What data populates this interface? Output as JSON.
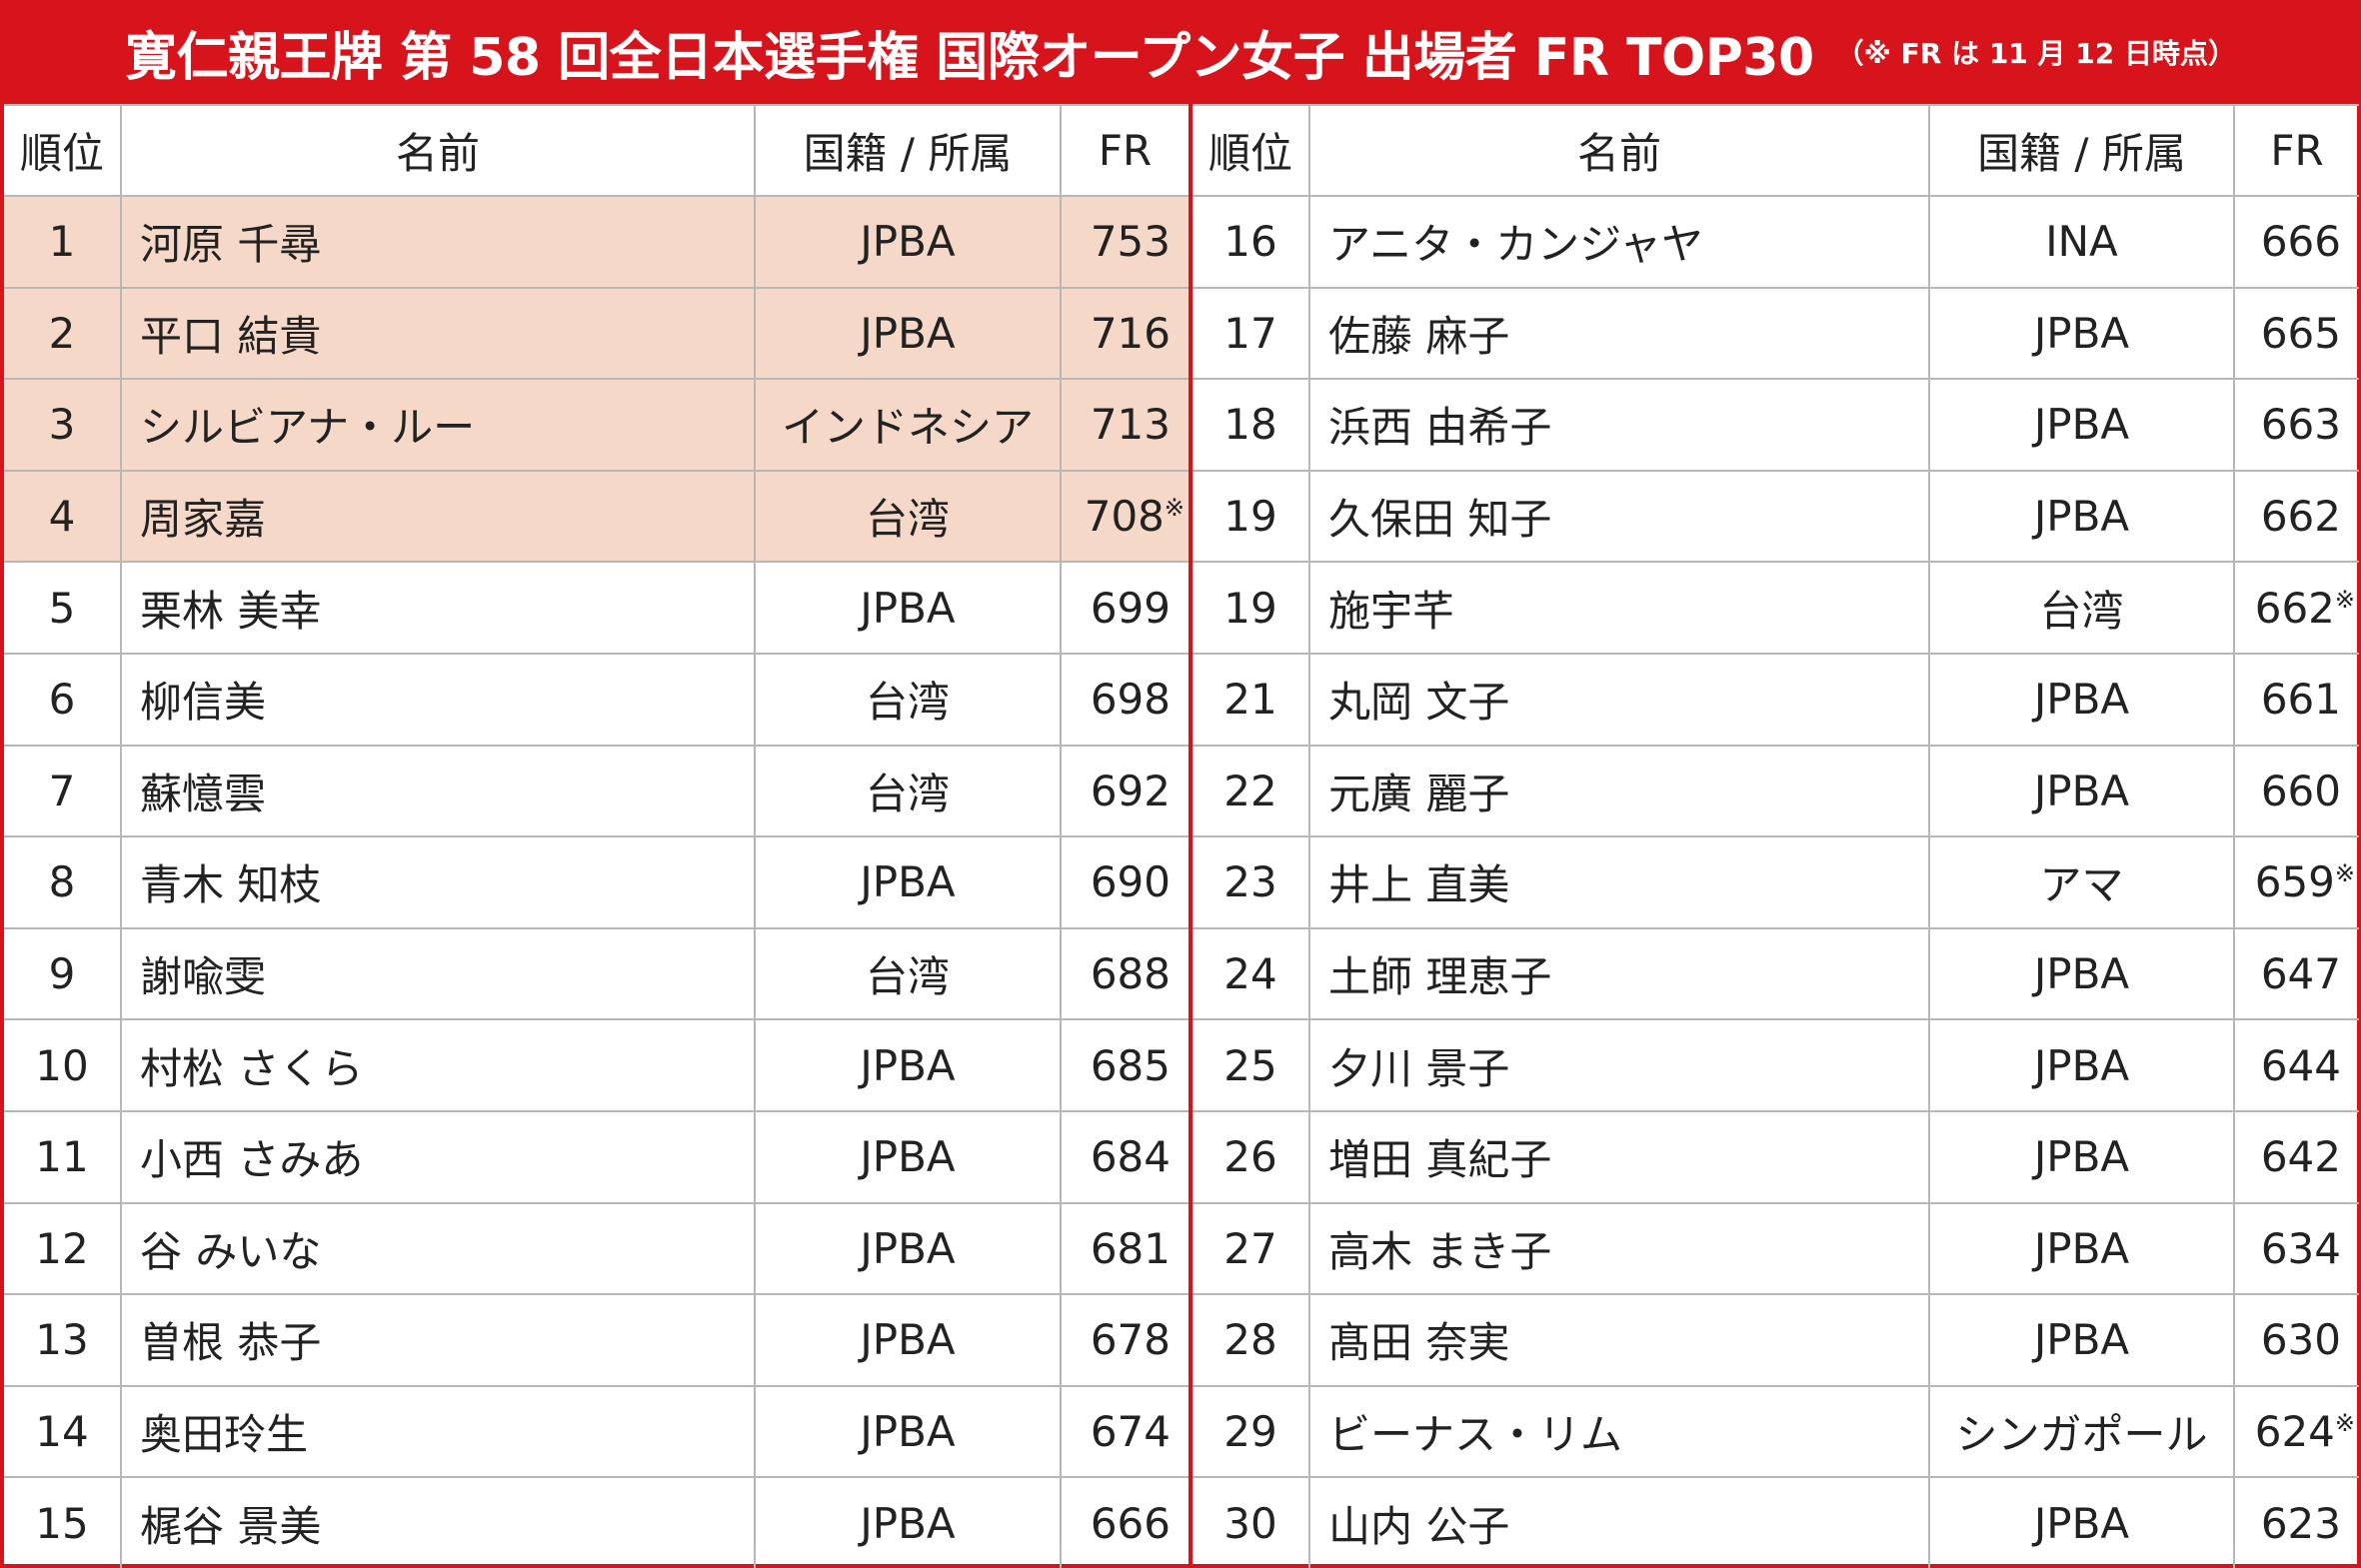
{
  "header": {
    "title": "寛仁親王牌 第 58 回全日本選手権 国際オープン女子 出場者 FR TOP30",
    "note": "（※ FR は 11 月 12 日時点）"
  },
  "columns": {
    "rank": "順位",
    "name": "名前",
    "affil": "国籍 / 所属",
    "fr": "FR"
  },
  "note_mark": "※",
  "colors": {
    "accent": "#d7141c",
    "highlight": "#f5d8c8"
  },
  "left_rows": [
    {
      "rank": "1",
      "name": "河原 千尋",
      "affil": "JPBA",
      "fr": "753",
      "hl": true,
      "mark": false
    },
    {
      "rank": "2",
      "name": "平口 結貴",
      "affil": "JPBA",
      "fr": "716",
      "hl": true,
      "mark": false
    },
    {
      "rank": "3",
      "name": "シルビアナ・ルー",
      "affil": "インドネシア",
      "fr": "713",
      "hl": true,
      "mark": false
    },
    {
      "rank": "4",
      "name": "周家嘉",
      "affil": "台湾",
      "fr": "708",
      "hl": true,
      "mark": true
    },
    {
      "rank": "5",
      "name": "栗林 美幸",
      "affil": "JPBA",
      "fr": "699",
      "hl": false,
      "mark": false
    },
    {
      "rank": "6",
      "name": "柳信美",
      "affil": "台湾",
      "fr": "698",
      "hl": false,
      "mark": false
    },
    {
      "rank": "7",
      "name": "蘇憶雲",
      "affil": "台湾",
      "fr": "692",
      "hl": false,
      "mark": false
    },
    {
      "rank": "8",
      "name": "青木 知枝",
      "affil": "JPBA",
      "fr": "690",
      "hl": false,
      "mark": false
    },
    {
      "rank": "9",
      "name": "謝喩雯",
      "affil": "台湾",
      "fr": "688",
      "hl": false,
      "mark": false
    },
    {
      "rank": "10",
      "name": "村松 さくら",
      "affil": "JPBA",
      "fr": "685",
      "hl": false,
      "mark": false
    },
    {
      "rank": "11",
      "name": "小西 さみあ",
      "affil": "JPBA",
      "fr": "684",
      "hl": false,
      "mark": false
    },
    {
      "rank": "12",
      "name": "谷 みいな",
      "affil": "JPBA",
      "fr": "681",
      "hl": false,
      "mark": false
    },
    {
      "rank": "13",
      "name": "曽根 恭子",
      "affil": "JPBA",
      "fr": "678",
      "hl": false,
      "mark": false
    },
    {
      "rank": "14",
      "name": "奥田玲生",
      "affil": "JPBA",
      "fr": "674",
      "hl": false,
      "mark": false
    },
    {
      "rank": "15",
      "name": "梶谷 景美",
      "affil": "JPBA",
      "fr": "666",
      "hl": false,
      "mark": false
    }
  ],
  "right_rows": [
    {
      "rank": "16",
      "name": "アニタ・カンジャヤ",
      "affil": "INA",
      "fr": "666",
      "hl": false,
      "mark": false
    },
    {
      "rank": "17",
      "name": "佐藤 麻子",
      "affil": "JPBA",
      "fr": "665",
      "hl": false,
      "mark": false
    },
    {
      "rank": "18",
      "name": "浜西 由希子",
      "affil": "JPBA",
      "fr": "663",
      "hl": false,
      "mark": false
    },
    {
      "rank": "19",
      "name": "久保田 知子",
      "affil": "JPBA",
      "fr": "662",
      "hl": false,
      "mark": false
    },
    {
      "rank": "19",
      "name": "施宇芊",
      "affil": "台湾",
      "fr": "662",
      "hl": false,
      "mark": true
    },
    {
      "rank": "21",
      "name": "丸岡 文子",
      "affil": "JPBA",
      "fr": "661",
      "hl": false,
      "mark": false
    },
    {
      "rank": "22",
      "name": "元廣 麗子",
      "affil": "JPBA",
      "fr": "660",
      "hl": false,
      "mark": false
    },
    {
      "rank": "23",
      "name": "井上 直美",
      "affil": "アマ",
      "fr": "659",
      "hl": false,
      "mark": true
    },
    {
      "rank": "24",
      "name": "土師 理恵子",
      "affil": "JPBA",
      "fr": "647",
      "hl": false,
      "mark": false
    },
    {
      "rank": "25",
      "name": "夕川 景子",
      "affil": "JPBA",
      "fr": "644",
      "hl": false,
      "mark": false
    },
    {
      "rank": "26",
      "name": "増田 真紀子",
      "affil": "JPBA",
      "fr": "642",
      "hl": false,
      "mark": false
    },
    {
      "rank": "27",
      "name": "高木 まき子",
      "affil": "JPBA",
      "fr": "634",
      "hl": false,
      "mark": false
    },
    {
      "rank": "28",
      "name": "髙田 奈実",
      "affil": "JPBA",
      "fr": "630",
      "hl": false,
      "mark": false
    },
    {
      "rank": "29",
      "name": "ビーナス・リム",
      "affil": "シンガポール",
      "fr": "624",
      "hl": false,
      "mark": true
    },
    {
      "rank": "30",
      "name": "山内 公子",
      "affil": "JPBA",
      "fr": "623",
      "hl": false,
      "mark": false
    }
  ]
}
